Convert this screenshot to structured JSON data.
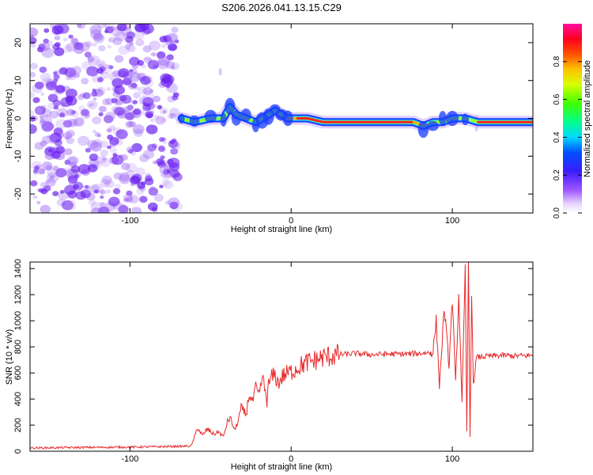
{
  "title": "S206.2026.041.13.15.C29",
  "colors": {
    "axis": "#000000",
    "snr_line": "#e8282a",
    "scatter_noise": "#8a3ff0",
    "track_outer": "#1a3cff",
    "track_mid": "#22e0e0",
    "track_core": "#ff2020"
  },
  "chart_data": [
    {
      "type": "heatmap",
      "name": "spectrogram",
      "title": "",
      "xlabel": "Height of straight line (km)",
      "ylabel": "Frequency (Hz)",
      "xlim": [
        -162,
        150
      ],
      "ylim": [
        -25,
        25
      ],
      "x_ticks": [
        -100,
        0,
        100
      ],
      "x_tick_labels": [
        "-100",
        "0",
        "100"
      ],
      "y_ticks": [
        -20,
        -10,
        0,
        10,
        20
      ],
      "y_tick_labels": [
        "-20",
        "-10",
        "0",
        "10",
        "20"
      ],
      "noise_region_x": [
        -162,
        -70
      ],
      "track": {
        "x": [
          -68,
          -60,
          -50,
          -42,
          -38,
          -34,
          -28,
          -22,
          -18,
          -14,
          -10,
          -6,
          -2,
          4,
          10,
          20,
          40,
          60,
          76,
          82,
          88,
          94,
          100,
          108,
          116,
          130,
          150
        ],
        "y": [
          0,
          -1,
          0,
          0,
          3,
          1,
          0,
          -1,
          0,
          1,
          2,
          1,
          0,
          0,
          0,
          -1,
          -1,
          -1,
          -1,
          -2,
          -1,
          -1,
          0,
          0,
          -1,
          -1,
          -1
        ],
        "intensity": [
          0.25,
          0.3,
          0.3,
          0.35,
          0.7,
          0.4,
          0.3,
          0.45,
          0.5,
          0.6,
          0.75,
          0.55,
          0.85,
          0.9,
          0.95,
          1.0,
          1.0,
          1.0,
          0.95,
          0.7,
          0.6,
          0.55,
          0.5,
          0.55,
          0.95,
          0.95,
          1.0
        ]
      },
      "colorbar": {
        "label": "Normalized spectral amplitude",
        "range": [
          0,
          1
        ],
        "ticks": [
          0.0,
          0.2,
          0.4,
          0.6,
          0.8
        ],
        "tick_labels": [
          "0.0",
          "0.2",
          "0.4",
          "0.6",
          "0.8"
        ]
      }
    },
    {
      "type": "line",
      "name": "snr",
      "title": "",
      "xlabel": "Height of straight line (km)",
      "ylabel": "SNR (10 * v/v)",
      "xlim": [
        -162,
        150
      ],
      "ylim": [
        0,
        1450
      ],
      "x_ticks": [
        -100,
        0,
        100
      ],
      "x_tick_labels": [
        "-100",
        "0",
        "100"
      ],
      "y_ticks": [
        0,
        200,
        400,
        600,
        800,
        1000,
        1200,
        1400
      ],
      "y_tick_labels": [
        "0",
        "200",
        "400",
        "600",
        "800",
        "1000",
        "1200",
        "1400"
      ],
      "series": [
        {
          "name": "SNR",
          "x": [
            -162,
            -140,
            -120,
            -100,
            -80,
            -62,
            -58,
            -55,
            -52,
            -48,
            -45,
            -42,
            -40,
            -38,
            -35,
            -33,
            -31,
            -28,
            -26,
            -24,
            -22,
            -20,
            -18,
            -16,
            -15,
            -14,
            -12,
            -10,
            -8,
            -5,
            0,
            5,
            10,
            15,
            20,
            25,
            30,
            40,
            50,
            60,
            70,
            80,
            88,
            90,
            92,
            95,
            98,
            100,
            102,
            104,
            106,
            108,
            109,
            110,
            111,
            112,
            113,
            115,
            120,
            130,
            140,
            150
          ],
          "y": [
            25,
            28,
            30,
            32,
            35,
            40,
            180,
            120,
            170,
            130,
            150,
            110,
            210,
            260,
            160,
            230,
            330,
            280,
            440,
            370,
            480,
            420,
            560,
            460,
            380,
            510,
            570,
            580,
            520,
            580,
            610,
            650,
            680,
            700,
            720,
            730,
            740,
            750,
            740,
            745,
            745,
            750,
            760,
            1000,
            500,
            1100,
            650,
            1180,
            520,
            1200,
            380,
            1370,
            150,
            1420,
            110,
            1250,
            500,
            720,
            725,
            735,
            730,
            735
          ]
        }
      ]
    }
  ]
}
